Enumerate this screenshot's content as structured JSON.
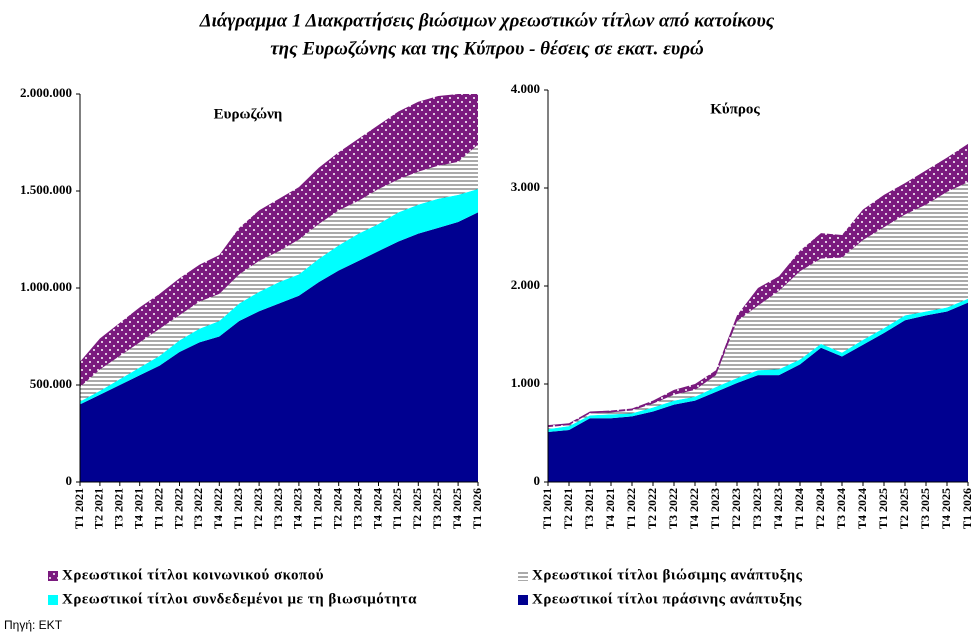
{
  "title": [
    "Διάγραμμα 1  Διακρατήσεις βιώσιμων χρεωστικών τίτλων από κατοίκους",
    "της Ευρωζώνης και της Κύπρου - θέσεις σε εκατ. ευρώ"
  ],
  "source": "Πηγή: ΕΚΤ",
  "chart_data": [
    {
      "type": "stacked_area",
      "title": "Ευρωζώνη",
      "categories": [
        "Τ1 2021",
        "Τ2 2021",
        "Τ3 2021",
        "Τ4 2021",
        "Τ1 2022",
        "Τ2 2022",
        "Τ3 2022",
        "Τ4 2022",
        "Τ1 2023",
        "Τ2 2023",
        "Τ3 2023",
        "Τ4 2023",
        "Τ1 2024",
        "Τ2 2024",
        "Τ3 2024",
        "Τ4 2024",
        "Τ1 2025",
        "Τ2 2025",
        "Τ3 2025",
        "Τ4 2025",
        "Τ1 2026"
      ],
      "ylim": [
        0,
        2000000
      ],
      "yticks": [
        0,
        {
          "value": 500000,
          "label": "500.000"
        },
        {
          "value": 1000000,
          "label": "1.000.000"
        },
        {
          "value": 1500000,
          "label": "1.500.000"
        },
        {
          "value": 2000000,
          "label": "2.000.000"
        }
      ],
      "series": [
        {
          "name": "Χρεωστικοί τίτλοι πράσινης ανάπτυξης",
          "color": "#000090",
          "pattern": "solid",
          "values": [
            400000,
            450000,
            500000,
            550000,
            600000,
            670000,
            720000,
            750000,
            830000,
            880000,
            920000,
            960000,
            1030000,
            1090000,
            1140000,
            1190000,
            1240000,
            1280000,
            1310000,
            1340000,
            1390000
          ]
        },
        {
          "name": "Χρεωστικοί τίτλοι συνδεδεμένοι με τη βιωσιμότητα",
          "color": "#00ffff",
          "pattern": "solid",
          "values": [
            15000,
            20000,
            30000,
            40000,
            50000,
            60000,
            70000,
            80000,
            90000,
            100000,
            110000,
            110000,
            120000,
            130000,
            140000,
            140000,
            150000,
            150000,
            150000,
            140000,
            120000
          ]
        },
        {
          "name": "Χρεωστικοί τίτλοι βιώσιμης ανάπτυξης",
          "color": "#555555",
          "pattern": "stripes",
          "values": [
            75000,
            110000,
            120000,
            130000,
            140000,
            130000,
            140000,
            140000,
            150000,
            160000,
            160000,
            180000,
            180000,
            180000,
            170000,
            180000,
            170000,
            170000,
            170000,
            170000,
            230000
          ]
        },
        {
          "name": "Χρεωστικοί τίτλοι κοινωνικού σκοπού",
          "color": "#7a1a7e",
          "pattern": "dots",
          "values": [
            130000,
            160000,
            170000,
            180000,
            180000,
            190000,
            190000,
            200000,
            240000,
            260000,
            270000,
            270000,
            290000,
            300000,
            320000,
            330000,
            350000,
            360000,
            360000,
            350000,
            260000
          ]
        }
      ]
    },
    {
      "type": "stacked_area",
      "title": "Κύπρος",
      "categories": [
        "Τ1 2021",
        "Τ2 2021",
        "Τ3 2021",
        "Τ4 2021",
        "Τ1 2022",
        "Τ2 2022",
        "Τ3 2022",
        "Τ4 2022",
        "Τ1 2023",
        "Τ2 2023",
        "Τ3 2023",
        "Τ4 2023",
        "Τ1 2024",
        "Τ2 2024",
        "Τ3 2024",
        "Τ4 2024",
        "Τ1 2025",
        "Τ2 2025",
        "Τ3 2025",
        "Τ4 2025",
        "Τ1 2026"
      ],
      "ylim": [
        0,
        4000
      ],
      "yticks": [
        0,
        {
          "value": 1000,
          "label": "1.000"
        },
        {
          "value": 2000,
          "label": "2.000"
        },
        {
          "value": 3000,
          "label": "3.000"
        },
        {
          "value": 4000,
          "label": "4.000"
        }
      ],
      "series": [
        {
          "name": "Χρεωστικοί τίτλοι πράσινης ανάπτυξης",
          "color": "#000090",
          "pattern": "solid",
          "values": [
            510,
            530,
            650,
            650,
            670,
            720,
            790,
            830,
            920,
            1010,
            1090,
            1090,
            1200,
            1370,
            1280,
            1400,
            1520,
            1650,
            1700,
            1740,
            1830
          ]
        },
        {
          "name": "Χρεωστικοί τίτλοι συνδεδεμένοι με τη βιωσιμότητα",
          "color": "#00ffff",
          "pattern": "solid",
          "values": [
            30,
            40,
            30,
            40,
            30,
            40,
            40,
            40,
            50,
            50,
            50,
            60,
            50,
            40,
            40,
            50,
            50,
            50,
            40,
            40,
            40
          ]
        },
        {
          "name": "Χρεωστικοί τίτλοι βιώσιμης ανάπτυξης",
          "color": "#555555",
          "pattern": "stripes",
          "values": [
            20,
            10,
            20,
            20,
            30,
            40,
            60,
            70,
            120,
            580,
            660,
            800,
            900,
            870,
            970,
            1020,
            1030,
            1030,
            1090,
            1180,
            1190
          ]
        },
        {
          "name": "Χρεωστικοί τίτλοι κοινωνικού σκοπού",
          "color": "#7a1a7e",
          "pattern": "dots",
          "values": [
            20,
            20,
            20,
            20,
            20,
            30,
            50,
            60,
            50,
            60,
            180,
            150,
            210,
            260,
            230,
            310,
            330,
            320,
            350,
            350,
            390
          ]
        }
      ]
    }
  ]
}
